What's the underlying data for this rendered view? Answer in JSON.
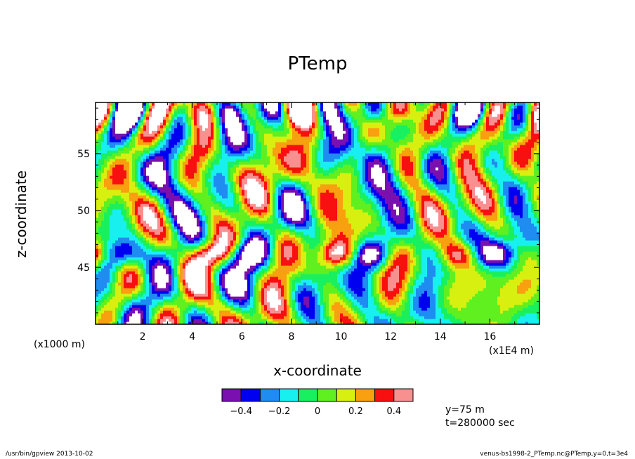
{
  "chart_data": {
    "type": "heatmap",
    "title": "PTemp",
    "xlabel": "x-coordinate",
    "ylabel": "z-coordinate",
    "x_unit_left": "(x1000 m)",
    "x_unit_right": "(x1E4 m)",
    "xlim": [
      0.1,
      18
    ],
    "ylim": [
      40,
      59.5
    ],
    "x_ticks": [
      2,
      4,
      6,
      8,
      10,
      12,
      14,
      16
    ],
    "y_ticks": [
      45,
      50,
      55
    ],
    "colorbar": {
      "levels": [
        -0.5,
        -0.4,
        -0.3,
        -0.2,
        -0.1,
        0,
        0.1,
        0.2,
        0.3,
        0.4,
        0.5
      ],
      "tick_labels": [
        "-0.4",
        "-0.2",
        "0",
        "0.2",
        "0.4"
      ],
      "tick_values": [
        -0.4,
        -0.2,
        0,
        0.2,
        0.4
      ],
      "colors": [
        "#7a10b0",
        "#0000f0",
        "#1e8cf0",
        "#18f0f0",
        "#18f060",
        "#60f020",
        "#d8f010",
        "#f8a010",
        "#f81010",
        "#f89090"
      ],
      "under_color": "#ffffff",
      "over_color": "#ffffff"
    },
    "info": {
      "y": "y=75 m",
      "t": "t=280000 sec"
    },
    "footer_left": "/usr/bin/gpview  2013-10-02",
    "footer_right": "venus-bs1998-2_PTemp.nc@PTemp,y=0,t=3e4"
  }
}
